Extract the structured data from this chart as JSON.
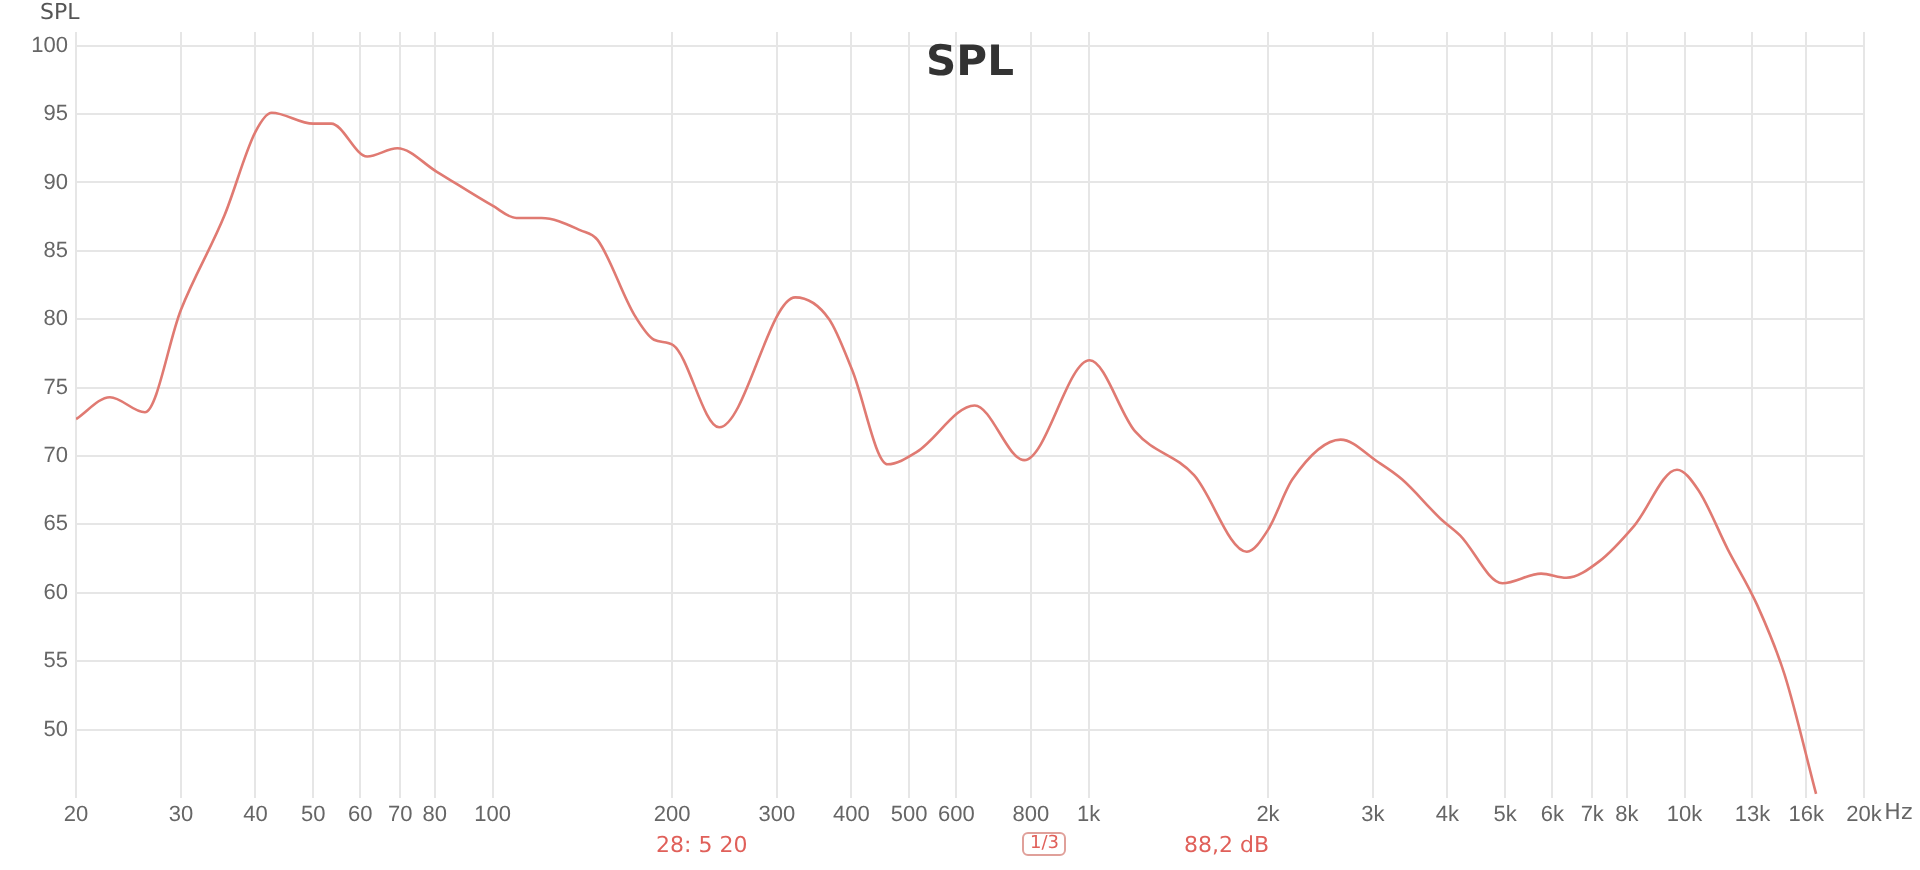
{
  "chart_data": {
    "type": "line",
    "title": "SPL",
    "ylabel": "SPL",
    "x": [
      20,
      22.8,
      26.1,
      30,
      35.5,
      40,
      42.6,
      50,
      53.6,
      61.6,
      69.2,
      80.5,
      100,
      109.6,
      120.8,
      140.5,
      150,
      173,
      186.6,
      201,
      240,
      322,
      367,
      401,
      460,
      515,
      644,
      780,
      1004,
      1197,
      1503,
      1843,
      2000,
      2198,
      2648,
      3050,
      3356,
      3899,
      4200,
      4947,
      5745,
      6333,
      7190,
      8230,
      9710,
      10550,
      11810,
      13240,
      14720,
      16620
    ],
    "series": [
      {
        "color": "#e07a72",
        "values": [
          72.7,
          74.3,
          73.2,
          80.7,
          87.6,
          93.7,
          95.1,
          94.3,
          94.3,
          91.9,
          92.5,
          90.8,
          88.3,
          87.4,
          87.4,
          86.5,
          85.8,
          80.3,
          78.5,
          78.1,
          72.1,
          81.6,
          80.0,
          76.3,
          69.4,
          70.3,
          73.7,
          69.7,
          77.0,
          71.8,
          68.6,
          63.0,
          64.6,
          68.3,
          71.2,
          69.6,
          68.3,
          65.4,
          64.2,
          60.7,
          61.4,
          61.1,
          62.3,
          64.9,
          69.0,
          67.5,
          63.2,
          59.1,
          54.0,
          45.3
        ]
      }
    ],
    "log": "x",
    "xlim": [
      20,
      20000
    ],
    "ylim": [
      45,
      101
    ],
    "xticks": [
      20,
      30,
      40,
      50,
      60,
      70,
      80,
      100,
      200,
      300,
      400,
      500,
      600,
      800,
      {
        "value": 1000,
        "label": "1k"
      },
      {
        "value": 2000,
        "label": "2k"
      },
      {
        "value": 3000,
        "label": "3k"
      },
      {
        "value": 4000,
        "label": "4k"
      },
      {
        "value": 5000,
        "label": "5k"
      },
      {
        "value": 6000,
        "label": "6k"
      },
      {
        "value": 7000,
        "label": "7k"
      },
      {
        "value": 8000,
        "label": "8k"
      },
      {
        "value": 10000,
        "label": "10k"
      },
      {
        "value": 13000,
        "label": "13k"
      },
      {
        "value": 16000,
        "label": "16k"
      },
      {
        "value": 20000,
        "label": "20k"
      }
    ],
    "xlabel": "Hz",
    "yticks": [
      50,
      55,
      60,
      65,
      70,
      75,
      80,
      85,
      90,
      95,
      100
    ],
    "grid": true,
    "legend": false,
    "marker": "none",
    "line_style": "solid",
    "annotations": [
      "28: 5 20",
      "1/3",
      "88,2 dB"
    ]
  }
}
